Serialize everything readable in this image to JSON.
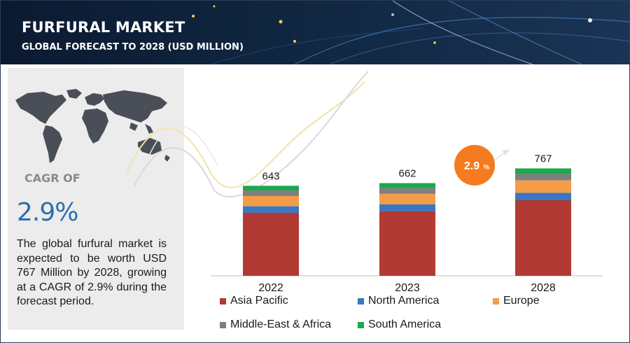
{
  "header": {
    "title": "FURFURAL MARKET",
    "subtitle": "GLOBAL FORECAST TO 2028 (USD MILLION)"
  },
  "sidebar": {
    "cagr_label": "CAGR OF",
    "cagr_value": "2.9%",
    "summary": "The global furfural market is expected to be worth USD 767 Million by 2028, growing at a CAGR of 2.9% during the forecast period."
  },
  "chart_data": {
    "type": "bar",
    "stacked": true,
    "categories": [
      "2022",
      "2023",
      "2028"
    ],
    "totals": [
      643,
      662,
      767
    ],
    "series": [
      {
        "name": "Asia Pacific",
        "color": "#b23a34",
        "values": [
          450,
          462,
          540
        ]
      },
      {
        "name": "North America",
        "color": "#3a78c3",
        "values": [
          47,
          48,
          53
        ]
      },
      {
        "name": "Europe",
        "color": "#f59c49",
        "values": [
          73,
          76,
          89
        ]
      },
      {
        "name": "Middle-East & Africa",
        "color": "#7f7f7f",
        "values": [
          40,
          41,
          46
        ]
      },
      {
        "name": "South America",
        "color": "#1aa94d",
        "values": [
          33,
          35,
          39
        ]
      }
    ],
    "cagr_badge": {
      "text": "2.9",
      "suffix": "%",
      "color": "#f47b20"
    },
    "legend_position": "bottom",
    "grid": false
  }
}
